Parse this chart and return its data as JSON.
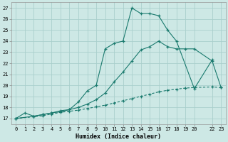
{
  "bg_color": "#cde8e5",
  "grid_color": "#aacfcc",
  "line_color": "#1a7a6e",
  "xlabel": "Humidex (Indice chaleur)",
  "xlim": [
    -0.5,
    23.5
  ],
  "ylim": [
    16.5,
    27.5
  ],
  "yticks": [
    17,
    18,
    19,
    20,
    21,
    22,
    23,
    24,
    25,
    26,
    27
  ],
  "xticks": [
    0,
    1,
    2,
    3,
    4,
    5,
    6,
    7,
    8,
    9,
    10,
    11,
    12,
    13,
    14,
    15,
    16,
    17,
    18,
    19,
    20,
    22,
    23
  ],
  "xtick_labels": [
    "0",
    "1",
    "2",
    "3",
    "4",
    "5",
    "6",
    "7",
    "8",
    "9",
    "10",
    "11",
    "12",
    "13",
    "14",
    "15",
    "16",
    "17",
    "18",
    "19",
    "20",
    "22",
    "23"
  ],
  "line1_x": [
    0,
    1,
    2,
    3,
    4,
    5,
    6,
    7,
    8,
    9,
    10,
    11,
    12,
    13,
    14,
    15,
    16,
    17,
    18,
    20,
    22
  ],
  "line1_y": [
    17,
    17.5,
    17.2,
    17.35,
    17.5,
    17.7,
    17.8,
    18.5,
    19.5,
    20.0,
    23.3,
    23.8,
    24.0,
    27.0,
    26.5,
    26.5,
    26.3,
    25.0,
    24.0,
    19.7,
    22.3
  ],
  "line2_x": [
    0,
    2,
    3,
    4,
    5,
    6,
    7,
    8,
    9,
    10,
    11,
    12,
    13,
    14,
    15,
    16,
    17,
    18,
    19,
    20,
    22,
    23
  ],
  "line2_y": [
    17,
    17.2,
    17.35,
    17.5,
    17.6,
    17.8,
    18.0,
    18.3,
    18.7,
    19.3,
    20.3,
    21.2,
    22.2,
    23.2,
    23.5,
    24.0,
    23.5,
    23.3,
    23.3,
    23.3,
    22.2,
    19.8
  ],
  "line3_x": [
    0,
    2,
    3,
    4,
    5,
    6,
    7,
    8,
    9,
    10,
    11,
    12,
    13,
    14,
    15,
    16,
    17,
    18,
    19,
    20,
    22,
    23
  ],
  "line3_y": [
    17,
    17.15,
    17.25,
    17.4,
    17.55,
    17.65,
    17.75,
    17.9,
    18.05,
    18.2,
    18.4,
    18.6,
    18.8,
    19.0,
    19.2,
    19.4,
    19.55,
    19.65,
    19.75,
    19.8,
    19.85,
    19.8
  ]
}
